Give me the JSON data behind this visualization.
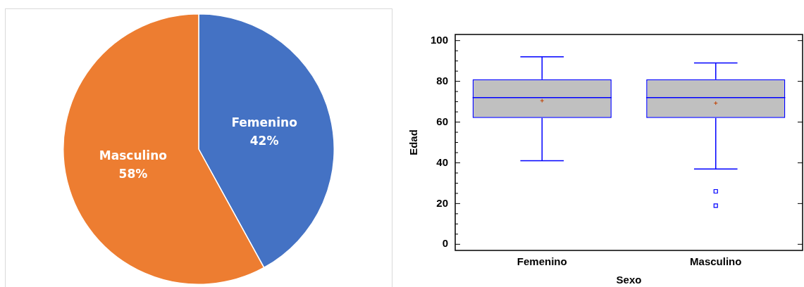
{
  "chart_data": [
    {
      "type": "pie",
      "categories": [
        "Femenino",
        "Masculino"
      ],
      "values": [
        42,
        58
      ],
      "colors": [
        "#4472c4",
        "#ed7d31"
      ],
      "value_labels": [
        "42%",
        "58%"
      ],
      "legend": false
    },
    {
      "type": "box",
      "categories": [
        "Femenino",
        "Masculino"
      ],
      "xlabel": "Sexo",
      "ylabel": "Edad",
      "ylim": [
        -3,
        103
      ],
      "yticks": [
        0,
        {
          "value": 5,
          "label": null
        },
        {
          "value": 10,
          "label": null
        },
        {
          "value": 15,
          "label": null
        },
        20,
        {
          "value": 25,
          "label": null
        },
        {
          "value": 30,
          "label": null
        },
        {
          "value": 35,
          "label": null
        },
        40,
        {
          "value": 45,
          "label": null
        },
        {
          "value": 50,
          "label": null
        },
        {
          "value": 55,
          "label": null
        },
        60,
        {
          "value": 65,
          "label": null
        },
        {
          "value": 70,
          "label": null
        },
        {
          "value": 75,
          "label": null
        },
        80,
        {
          "value": 85,
          "label": null
        },
        {
          "value": 90,
          "label": null
        },
        {
          "value": 95,
          "label": null
        },
        100
      ],
      "grid": false,
      "legend": false,
      "series": [
        {
          "color": "#0000ff",
          "boxes": [
            {
              "low": 41,
              "q1": 62,
              "median": 72,
              "q3": 81,
              "high": 92,
              "mean": 70.5
            },
            {
              "low": 37,
              "q1": 62,
              "median": 72,
              "q3": 81,
              "high": 89,
              "mean": 69.3,
              "outliers": [
                26,
                19
              ]
            }
          ]
        }
      ]
    }
  ]
}
